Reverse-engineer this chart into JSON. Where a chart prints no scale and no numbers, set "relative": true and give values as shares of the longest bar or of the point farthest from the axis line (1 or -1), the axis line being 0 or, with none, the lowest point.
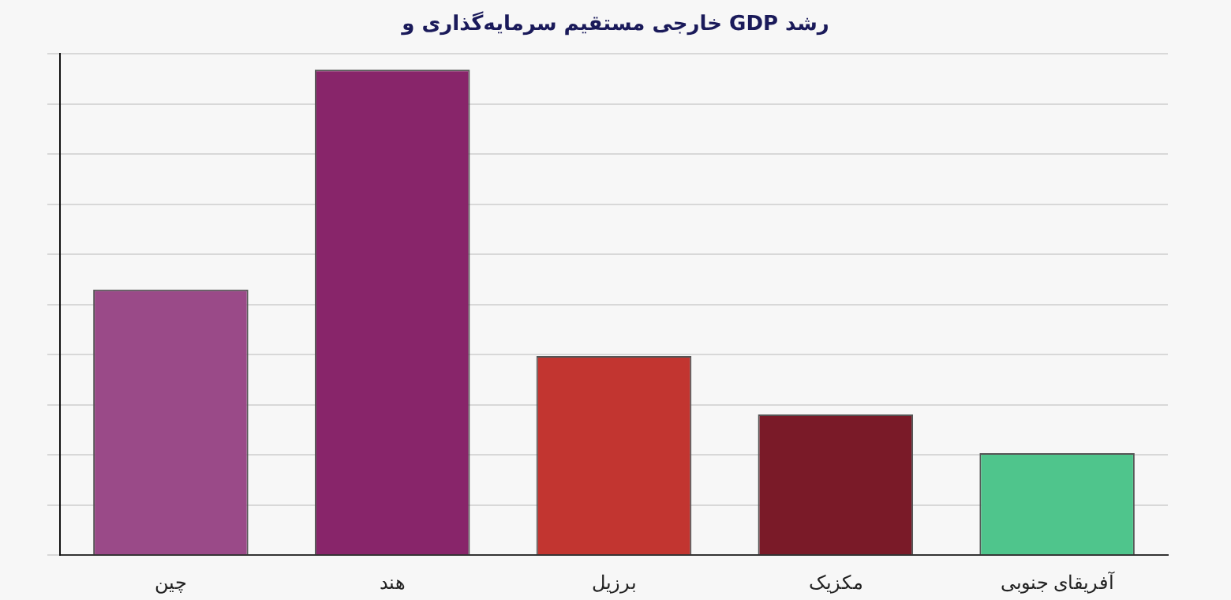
{
  "chart_data": {
    "type": "bar",
    "title": "رشد GDP خارجی مستقیم سرمایه‌گذاری و",
    "categories": [
      "چین",
      "هند",
      "برزیل",
      "مکزیک",
      "آفریقای جنوبی"
    ],
    "values": [
      0.547,
      1,
      0.41,
      0.29,
      0.21
    ],
    "colors": [
      "#9a4a88",
      "#88256a",
      "#c23530",
      "#7a1a28",
      "#4fc58c"
    ],
    "relative": true,
    "grid": "y",
    "legend": false
  }
}
